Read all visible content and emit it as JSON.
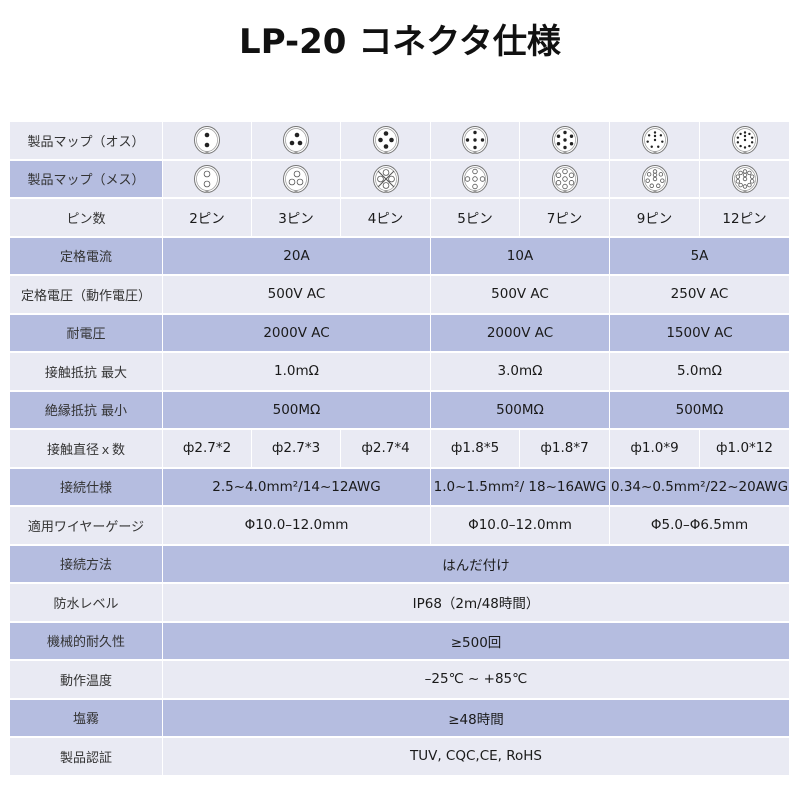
{
  "title": "LP-20 コネクタ仕様",
  "colors": {
    "light_row": "#e9eaf3",
    "dark_row": "#b5bde0"
  },
  "pin_counts": [
    2,
    3,
    4,
    5,
    7,
    9,
    12
  ],
  "rows": [
    {
      "label": "製品マップ（オス）",
      "type": "male-map"
    },
    {
      "label": "製品マップ（メス）",
      "type": "female-map"
    },
    {
      "label": "ピン数",
      "cells": [
        {
          "text": "2ピン",
          "span": 1
        },
        {
          "text": "3ピン",
          "span": 1
        },
        {
          "text": "4ピン",
          "span": 1
        },
        {
          "text": "5ピン",
          "span": 1
        },
        {
          "text": "7ピン",
          "span": 1
        },
        {
          "text": "9ピン",
          "span": 1
        },
        {
          "text": "12ピン",
          "span": 1
        }
      ]
    },
    {
      "label": "定格電流",
      "cells": [
        {
          "text": "20A",
          "span": 3
        },
        {
          "text": "10A",
          "span": 2
        },
        {
          "text": "5A",
          "span": 2
        }
      ]
    },
    {
      "label": "定格電圧（動作電圧）",
      "cells": [
        {
          "text": "500V  AC",
          "span": 3
        },
        {
          "text": "500V  AC",
          "span": 2
        },
        {
          "text": "250V  AC",
          "span": 2
        }
      ]
    },
    {
      "label": "耐電圧",
      "cells": [
        {
          "text": "2000V  AC",
          "span": 3
        },
        {
          "text": "2000V  AC",
          "span": 2
        },
        {
          "text": "1500V  AC",
          "span": 2
        }
      ]
    },
    {
      "label": "接触抵抗 最大",
      "cells": [
        {
          "text": "1.0mΩ",
          "span": 3
        },
        {
          "text": "3.0mΩ",
          "span": 2
        },
        {
          "text": "5.0mΩ",
          "span": 2
        }
      ]
    },
    {
      "label": "絶縁抵抗 最小",
      "cells": [
        {
          "text": "500MΩ",
          "span": 3
        },
        {
          "text": "500MΩ",
          "span": 2
        },
        {
          "text": "500MΩ",
          "span": 2
        }
      ]
    },
    {
      "label": "接触直径ｘ数",
      "cells": [
        {
          "text": "ф2.7*2",
          "span": 1
        },
        {
          "text": "ф2.7*3",
          "span": 1
        },
        {
          "text": "ф2.7*4",
          "span": 1
        },
        {
          "text": "ф1.8*5",
          "span": 1
        },
        {
          "text": "ф1.8*7",
          "span": 1
        },
        {
          "text": "ф1.0*9",
          "span": 1
        },
        {
          "text": "ф1.0*12",
          "span": 1
        }
      ]
    },
    {
      "label": "接続仕様",
      "cells": [
        {
          "text": "2.5~4.0mm²/14~12AWG",
          "span": 3
        },
        {
          "text": "1.0~1.5mm²/ 18~16AWG",
          "span": 2
        },
        {
          "text": "0.34~0.5mm²/22~20AWG",
          "span": 2
        }
      ]
    },
    {
      "label": "適用ワイヤーゲージ",
      "cells": [
        {
          "text": "Φ10.0–12.0mm",
          "span": 3
        },
        {
          "text": "Φ10.0–12.0mm",
          "span": 2
        },
        {
          "text": "Φ5.0–Φ6.5mm",
          "span": 2
        }
      ]
    },
    {
      "label": "接続方法",
      "cells": [
        {
          "text": "はんだ付け",
          "span": 7
        }
      ]
    },
    {
      "label": "防水レベル",
      "cells": [
        {
          "text": "IP68（2m/48時間）",
          "span": 7
        }
      ]
    },
    {
      "label": "機械的耐久性",
      "cells": [
        {
          "text": "≥500回",
          "span": 7
        }
      ]
    },
    {
      "label": "動作温度",
      "cells": [
        {
          "text": "–25℃ ~ +85℃",
          "span": 7
        }
      ]
    },
    {
      "label": "塩霧",
      "cells": [
        {
          "text": "≥48時間",
          "span": 7
        }
      ]
    },
    {
      "label": "製品認証",
      "cells": [
        {
          "text": "TUV, CQC,CE, RoHS",
          "span": 7
        }
      ]
    }
  ]
}
